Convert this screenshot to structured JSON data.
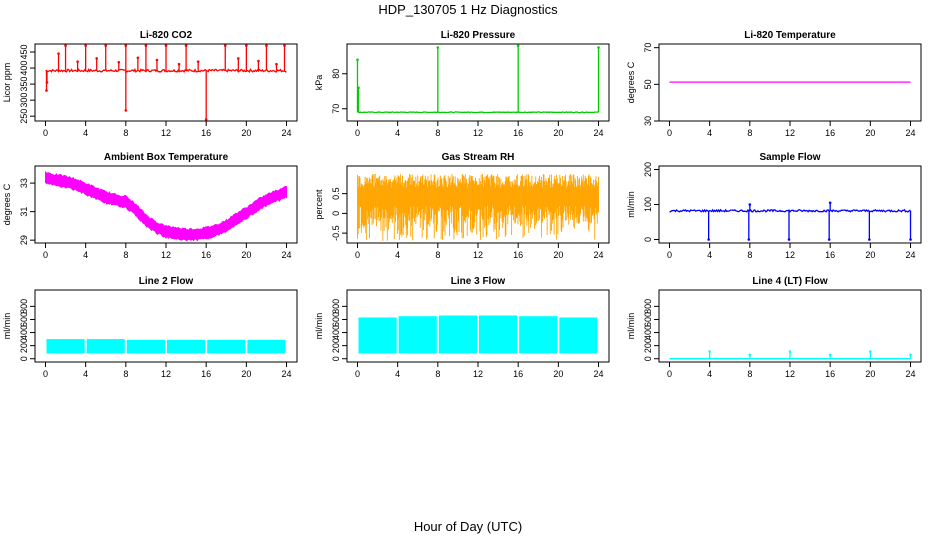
{
  "title": "HDP_130705  1 Hz Diagnostics",
  "xlabel": "Hour of Day (UTC)",
  "chart_data": [
    {
      "type": "line",
      "title": "Li-820 CO2",
      "ylabel": "Licor ppm",
      "xlim": [
        0,
        24
      ],
      "ylim": [
        235,
        475
      ],
      "yticks": [
        250,
        300,
        350,
        400,
        450
      ],
      "xticks": [
        0,
        4,
        8,
        12,
        16,
        20,
        24
      ],
      "color": "#ff0000",
      "baseline": 392,
      "noise": 4,
      "spikes": [
        {
          "x": 0.1,
          "y": 330
        },
        {
          "x": 0.15,
          "y": 355
        },
        {
          "x": 1.3,
          "y": 445
        },
        {
          "x": 2.0,
          "y": 470
        },
        {
          "x": 3.2,
          "y": 420
        },
        {
          "x": 4.0,
          "y": 470
        },
        {
          "x": 5.1,
          "y": 430
        },
        {
          "x": 6.0,
          "y": 470
        },
        {
          "x": 7.3,
          "y": 418
        },
        {
          "x": 8.0,
          "y": 268
        },
        {
          "x": 8.0,
          "y": 470
        },
        {
          "x": 9.2,
          "y": 432
        },
        {
          "x": 10.0,
          "y": 470
        },
        {
          "x": 11.1,
          "y": 425
        },
        {
          "x": 12.0,
          "y": 470
        },
        {
          "x": 13.3,
          "y": 412
        },
        {
          "x": 14.0,
          "y": 470
        },
        {
          "x": 15.2,
          "y": 420
        },
        {
          "x": 16.0,
          "y": 240
        },
        {
          "x": 17.9,
          "y": 470
        },
        {
          "x": 19.2,
          "y": 430
        },
        {
          "x": 20.0,
          "y": 470
        },
        {
          "x": 21.2,
          "y": 422
        },
        {
          "x": 22.0,
          "y": 470
        },
        {
          "x": 23.0,
          "y": 412
        },
        {
          "x": 23.8,
          "y": 470
        }
      ]
    },
    {
      "type": "line",
      "title": "Li-820 Pressure",
      "ylabel": "kPa",
      "xlim": [
        0,
        24
      ],
      "ylim": [
        66.5,
        88.5
      ],
      "yticks": [
        70,
        80
      ],
      "xticks": [
        0,
        4,
        8,
        12,
        16,
        20,
        24
      ],
      "color": "#00cc00",
      "baseline": 69.0,
      "noise": 0.1,
      "spikes": [
        {
          "x": 0.0,
          "y": 84
        },
        {
          "x": 0.1,
          "y": 76
        },
        {
          "x": 8.0,
          "y": 87.5
        },
        {
          "x": 16.0,
          "y": 88
        },
        {
          "x": 24.0,
          "y": 87.5
        }
      ]
    },
    {
      "type": "line",
      "title": "Li-820 Temperature",
      "ylabel": "degrees C",
      "xlim": [
        0,
        24
      ],
      "ylim": [
        30,
        72
      ],
      "yticks": [
        30,
        50,
        70
      ],
      "xticks": [
        0,
        4,
        8,
        12,
        16,
        20,
        24
      ],
      "color": "#ff00ff",
      "baseline": 51.2,
      "noise": 0.0,
      "spikes": []
    },
    {
      "type": "area",
      "title": "Ambient Box Temperature",
      "ylabel": "degrees C",
      "xlim": [
        0,
        24
      ],
      "ylim": [
        28.8,
        34.2
      ],
      "yticks": [
        29,
        31,
        33
      ],
      "xticks": [
        0,
        4,
        8,
        12,
        16,
        20,
        24
      ],
      "color": "#ff00ff",
      "band_width": 0.6,
      "x": [
        0,
        1,
        2,
        3,
        4,
        5,
        6,
        7,
        8,
        9,
        10,
        11,
        12,
        13,
        14,
        15,
        16,
        17,
        18,
        19,
        20,
        21,
        22,
        23,
        24
      ],
      "y": [
        33.4,
        33.2,
        33.1,
        32.9,
        32.6,
        32.3,
        32.0,
        31.8,
        31.7,
        31.1,
        30.4,
        29.9,
        29.6,
        29.5,
        29.4,
        29.4,
        29.5,
        29.7,
        30.0,
        30.5,
        30.9,
        31.4,
        31.8,
        32.1,
        32.4
      ]
    },
    {
      "type": "area",
      "title": "Gas Stream RH",
      "ylabel": "percent",
      "xlim": [
        0,
        24
      ],
      "ylim": [
        -0.75,
        1.2
      ],
      "yticks": [
        -0.5,
        0.0,
        0.5
      ],
      "xticks": [
        0,
        4,
        8,
        12,
        16,
        20,
        24
      ],
      "color": "#ffa500",
      "x": [
        0,
        24
      ],
      "y_low": [
        -0.3,
        -0.3
      ],
      "y_high": [
        1.0,
        1.0
      ]
    },
    {
      "type": "line",
      "title": "Sample Flow",
      "ylabel": "ml/min",
      "xlim": [
        0,
        24
      ],
      "ylim": [
        -10,
        210
      ],
      "yticks": [
        0,
        100,
        200
      ],
      "xticks": [
        0,
        4,
        8,
        12,
        16,
        20,
        24
      ],
      "color": "#0000ff",
      "baseline": 82,
      "noise": 3,
      "spikes": [
        {
          "x": 3.9,
          "y": 0
        },
        {
          "x": 7.9,
          "y": 0
        },
        {
          "x": 8.0,
          "y": 100
        },
        {
          "x": 11.9,
          "y": 0
        },
        {
          "x": 15.9,
          "y": 0
        },
        {
          "x": 16.0,
          "y": 105
        },
        {
          "x": 19.9,
          "y": 0
        },
        {
          "x": 24.0,
          "y": 0
        }
      ]
    },
    {
      "type": "bar",
      "title": "Line 2 Flow",
      "ylabel": "ml/min",
      "xlim": [
        0,
        24
      ],
      "ylim": [
        -50,
        1050
      ],
      "yticks": [
        0,
        200,
        400,
        600,
        800
      ],
      "xticks": [
        0,
        4,
        8,
        12,
        16,
        20,
        24
      ],
      "color": "#00ffff",
      "series": [
        {
          "x0": 0.1,
          "x1": 3.9,
          "low": 80,
          "high": 300
        },
        {
          "x0": 4.1,
          "x1": 7.9,
          "low": 80,
          "high": 300
        },
        {
          "x0": 8.1,
          "x1": 11.9,
          "low": 80,
          "high": 290
        },
        {
          "x0": 12.1,
          "x1": 15.9,
          "low": 80,
          "high": 290
        },
        {
          "x0": 16.1,
          "x1": 19.9,
          "low": 80,
          "high": 290
        },
        {
          "x0": 20.1,
          "x1": 23.9,
          "low": 80,
          "high": 290
        }
      ]
    },
    {
      "type": "bar",
      "title": "Line 3 Flow",
      "ylabel": "ml/min",
      "xlim": [
        0,
        24
      ],
      "ylim": [
        -50,
        1050
      ],
      "yticks": [
        0,
        200,
        400,
        600,
        800
      ],
      "xticks": [
        0,
        4,
        8,
        12,
        16,
        20,
        24
      ],
      "color": "#00ffff",
      "series": [
        {
          "x0": 0.1,
          "x1": 3.9,
          "low": 80,
          "high": 630
        },
        {
          "x0": 4.1,
          "x1": 7.9,
          "low": 80,
          "high": 650
        },
        {
          "x0": 8.1,
          "x1": 11.9,
          "low": 80,
          "high": 660
        },
        {
          "x0": 12.1,
          "x1": 15.9,
          "low": 80,
          "high": 660
        },
        {
          "x0": 16.1,
          "x1": 19.9,
          "low": 80,
          "high": 650
        },
        {
          "x0": 20.1,
          "x1": 23.9,
          "low": 80,
          "high": 630
        }
      ]
    },
    {
      "type": "line",
      "title": "Line 4 (LT) Flow",
      "ylabel": "ml/min",
      "xlim": [
        0,
        24
      ],
      "ylim": [
        -50,
        1050
      ],
      "yticks": [
        0,
        200,
        400,
        600,
        800
      ],
      "xticks": [
        0,
        4,
        8,
        12,
        16,
        20,
        24
      ],
      "color": "#00ffff",
      "baseline": 0,
      "noise": 0,
      "spikes": [
        {
          "x": 4.0,
          "y": 110
        },
        {
          "x": 8.0,
          "y": 60
        },
        {
          "x": 12.0,
          "y": 110
        },
        {
          "x": 16.0,
          "y": 60
        },
        {
          "x": 20.0,
          "y": 110
        },
        {
          "x": 24.0,
          "y": 60
        }
      ]
    }
  ]
}
